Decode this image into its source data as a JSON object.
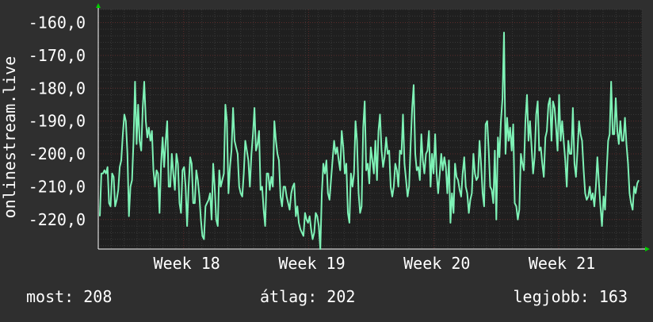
{
  "colors": {
    "background": "#2f2f2f",
    "plot_background": "#1f1f1f",
    "grid_minor": "#3a3a3a",
    "grid_major": "#5a2a2a",
    "line": "#7ef2b6",
    "text": "#ffffff",
    "arrow": "#00cc00"
  },
  "chart_data": {
    "type": "line",
    "ylabel": "onlinestream.live",
    "ylim": [
      -229,
      -156
    ],
    "y_ticks": [
      -160,
      -170,
      -180,
      -190,
      -200,
      -210,
      -220
    ],
    "y_tick_labels": [
      "-160,0",
      "-170,0",
      "-180,0",
      "-190,0",
      "-200,0",
      "-210,0",
      "-220,0"
    ],
    "xlim": [
      0,
      1
    ],
    "x_tick_labels": [
      "Week 18",
      "Week 19",
      "Week 20",
      "Week 21"
    ],
    "x_ticks": [
      0.157,
      0.387,
      0.617,
      0.847
    ],
    "grid": true,
    "series": [
      {
        "values": [
          -219,
          -206,
          -206,
          -205,
          -206,
          -204,
          -215,
          -216,
          -206,
          -207,
          -216,
          -214,
          -211,
          -204,
          -202,
          -194,
          -188,
          -190,
          -200,
          -219,
          -210,
          -208,
          -196,
          -178,
          -197,
          -185,
          -196,
          -199,
          -186,
          -178,
          -190,
          -195,
          -192,
          -196,
          -193,
          -205,
          -210,
          -205,
          -206,
          -218,
          -203,
          -195,
          -204,
          -196,
          -190,
          -210,
          -210,
          -200,
          -206,
          -211,
          -200,
          -203,
          -215,
          -218,
          -205,
          -204,
          -210,
          -222,
          -210,
          -201,
          -203,
          -215,
          -215,
          -205,
          -208,
          -213,
          -220,
          -225,
          -226,
          -216,
          -215,
          -214,
          -212,
          -220,
          -203,
          -210,
          -220,
          -222,
          -205,
          -210,
          -208,
          -206,
          -185,
          -190,
          -212,
          -204,
          -199,
          -186,
          -196,
          -198,
          -200,
          -210,
          -212,
          -213,
          -206,
          -196,
          -199,
          -202,
          -210,
          -200,
          -194,
          -186,
          -199,
          -197,
          -193,
          -211,
          -210,
          -217,
          -222,
          -206,
          -206,
          -211,
          -207,
          -210,
          -190,
          -196,
          -200,
          -202,
          -213,
          -216,
          -210,
          -210,
          -213,
          -215,
          -217,
          -212,
          -210,
          -209,
          -219,
          -216,
          -221,
          -223,
          -224,
          -225,
          -218,
          -220,
          -221,
          -219,
          -223,
          -226,
          -224,
          -218,
          -219,
          -222,
          -229,
          -212,
          -203,
          -206,
          -202,
          -212,
          -214,
          -208,
          -202,
          -196,
          -200,
          -198,
          -202,
          -205,
          -193,
          -198,
          -206,
          -203,
          -218,
          -221,
          -206,
          -210,
          -206,
          -190,
          -196,
          -212,
          -218,
          -216,
          -192,
          -184,
          -205,
          -203,
          -209,
          -198,
          -202,
          -206,
          -196,
          -208,
          -193,
          -188,
          -199,
          -204,
          -201,
          -195,
          -200,
          -199,
          -210,
          -213,
          -210,
          -203,
          -205,
          -210,
          -199,
          -200,
          -188,
          -203,
          -208,
          -213,
          -210,
          -197,
          -186,
          -179,
          -200,
          -205,
          -204,
          -208,
          -194,
          -202,
          -206,
          -200,
          -199,
          -193,
          -210,
          -200,
          -206,
          -194,
          -206,
          -212,
          -206,
          -200,
          -205,
          -201,
          -204,
          -212,
          -202,
          -221,
          -212,
          -218,
          -203,
          -207,
          -208,
          -211,
          -213,
          -206,
          -201,
          -210,
          -212,
          -218,
          -214,
          -212,
          -200,
          -206,
          -208,
          -207,
          -196,
          -203,
          -212,
          -216,
          -191,
          -190,
          -199,
          -210,
          -211,
          -215,
          -199,
          -220,
          -195,
          -201,
          -190,
          -183,
          -163,
          -200,
          -189,
          -196,
          -192,
          -199,
          -191,
          -215,
          -216,
          -220,
          -217,
          -200,
          -203,
          -205,
          -190,
          -182,
          -196,
          -190,
          -198,
          -206,
          -201,
          -188,
          -184,
          -199,
          -198,
          -203,
          -207,
          -195,
          -193,
          -185,
          -183,
          -196,
          -184,
          -186,
          -192,
          -199,
          -182,
          -196,
          -190,
          -196,
          -202,
          -210,
          -196,
          -200,
          -200,
          -186,
          -203,
          -207,
          -199,
          -190,
          -194,
          -196,
          -205,
          -212,
          -214,
          -213,
          -210,
          -214,
          -212,
          -216,
          -210,
          -201,
          -209,
          -216,
          -222,
          -213,
          -217,
          -206,
          -196,
          -194,
          -178,
          -194,
          -194,
          -183,
          -193,
          -197,
          -190,
          -196,
          -196,
          -189,
          -197,
          -203,
          -212,
          -215,
          -217,
          -210,
          -212,
          -209,
          -208
        ]
      }
    ]
  },
  "stats": {
    "now": "most: 208",
    "avg": "átlag: 202",
    "best": "legjobb: 163"
  }
}
